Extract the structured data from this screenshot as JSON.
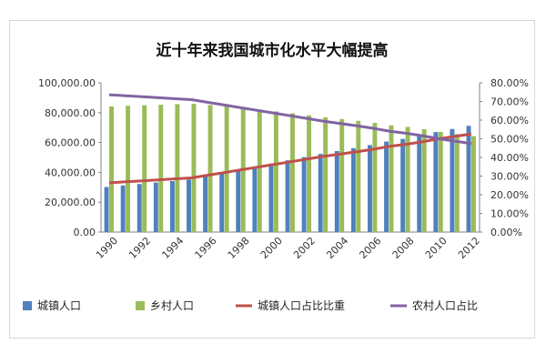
{
  "chart_data": {
    "type": "bar",
    "title": "近十年来我国城市化水平大幅提高",
    "categories": [
      "1990",
      "1991",
      "1992",
      "1993",
      "1994",
      "1995",
      "1996",
      "1997",
      "1998",
      "1999",
      "2000",
      "2001",
      "2002",
      "2003",
      "2004",
      "2005",
      "2006",
      "2007",
      "2008",
      "2009",
      "2010",
      "2011",
      "2012"
    ],
    "x_tick_labels": [
      "1990",
      "1992",
      "1994",
      "1996",
      "1998",
      "2000",
      "2002",
      "2004",
      "2006",
      "2008",
      "2010",
      "2012"
    ],
    "y_left": {
      "min": 0,
      "max": 100000,
      "step": 20000,
      "tick_labels": [
        "0.00",
        "20,000.00",
        "40,000.00",
        "60,000.00",
        "80,000.00",
        "100,000.00"
      ]
    },
    "y_right": {
      "min": 0,
      "max": 0.8,
      "step": 0.1,
      "tick_labels": [
        "0.00%",
        "10.00%",
        "20.00%",
        "30.00%",
        "40.00%",
        "50.00%",
        "60.00%",
        "70.00%",
        "80.00%"
      ]
    },
    "series": [
      {
        "name": "城镇人口",
        "kind": "bar",
        "axis": "left",
        "color": "#4f81bd",
        "values": [
          30195,
          31203,
          32175,
          33173,
          34169,
          35174,
          37304,
          39449,
          41608,
          43748,
          45906,
          48064,
          50212,
          52376,
          54283,
          56212,
          58288,
          60633,
          62403,
          64512,
          66978,
          69079,
          71182
        ]
      },
      {
        "name": "乡村人口",
        "kind": "bar",
        "axis": "left",
        "color": "#9bbb59",
        "values": [
          84138,
          84620,
          84996,
          85344,
          85681,
          85947,
          85085,
          84177,
          83153,
          82038,
          80837,
          79563,
          78241,
          76851,
          75705,
          74544,
          73160,
          71496,
          70399,
          68938,
          67113,
          65656,
          64222
        ]
      },
      {
        "name": "城镇人口占比比重",
        "kind": "line",
        "axis": "right",
        "color": "#c0504d",
        "values": [
          0.2641,
          0.2694,
          0.2746,
          0.2799,
          0.2851,
          0.2904,
          0.3048,
          0.3191,
          0.3335,
          0.3478,
          0.3622,
          0.3766,
          0.3909,
          0.4053,
          0.4176,
          0.4299,
          0.4434,
          0.4589,
          0.4699,
          0.4834,
          0.4995,
          0.5127,
          0.5257
        ]
      },
      {
        "name": "农村人口占比",
        "kind": "line",
        "axis": "right",
        "color": "#8064a2",
        "values": [
          0.7359,
          0.7306,
          0.7254,
          0.7201,
          0.7149,
          0.7096,
          0.6952,
          0.6809,
          0.6665,
          0.6522,
          0.6378,
          0.6234,
          0.6091,
          0.5947,
          0.5824,
          0.5701,
          0.5566,
          0.5411,
          0.5301,
          0.5166,
          0.5005,
          0.4873,
          0.4743
        ]
      }
    ],
    "legend_position": "bottom",
    "grid": false
  }
}
